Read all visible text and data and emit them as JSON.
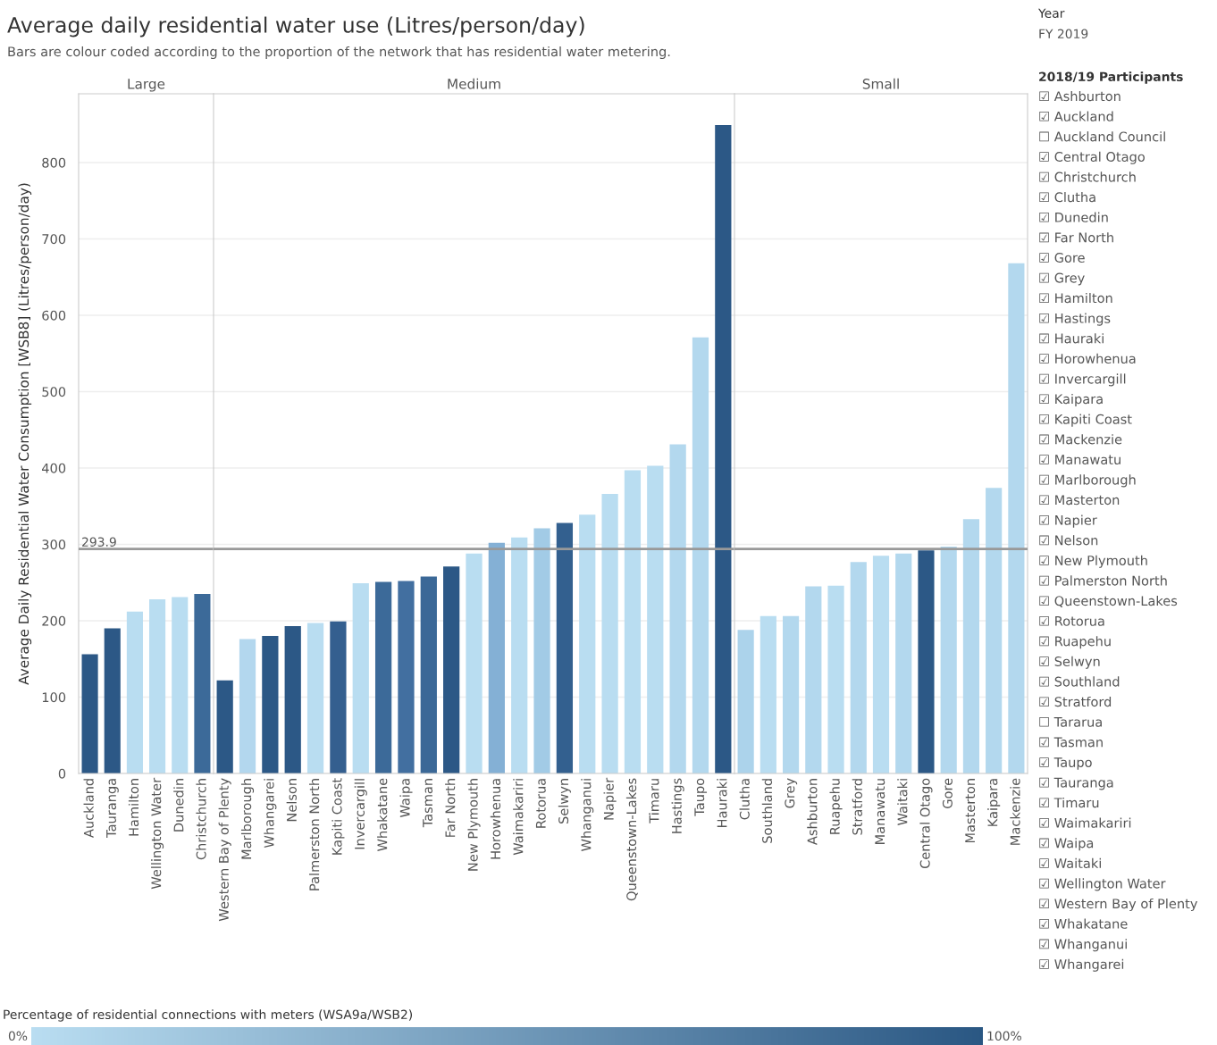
{
  "chart_data": [
    {
      "type": "other",
      "title": "Average daily residential water use (Litres/person/day)",
      "subtitle": "Bars are colour coded according to the proportion of the network that has residential water metering.",
      "annotations": [
        "Year",
        "FY 2019",
        "2018/19 Participants",
        "☑ Ashburton",
        "☑ Auckland",
        "☐ Auckland Council",
        "☑ Central Otago",
        "☑ Christchurch",
        "☑ Clutha",
        "☑ Dunedin",
        "☑ Far North",
        "☑ Gore",
        "☑ Grey",
        "☑ Hamilton",
        "☑ Hastings",
        "☑ Hauraki",
        "☑ Horowhenua",
        "☑ Invercargill",
        "☑ Kaipara",
        "☑ Kapiti Coast",
        "☑ Mackenzie",
        "☑ Manawatu",
        "☑ Marlborough",
        "☑ Masterton",
        "☑ Napier",
        "☑ Nelson",
        "☑ New Plymouth",
        "☑ Palmerston North",
        "☑ Queenstown-Lakes",
        "☑ Rotorua",
        "☑ Ruapehu",
        "☑ Selwyn",
        "☑ Southland",
        "☑ Stratford",
        "☐ Tararua",
        "☑ Tasman",
        "☑ Taupo",
        "☑ Tauranga",
        "☑ Timaru",
        "☑ Waimakariri",
        "☑ Waipa",
        "☑ Waitaki",
        "☑ Wellington Water",
        "☑ Western Bay of Plenty",
        "☑ Whakatane",
        "☑ Whanganui",
        "☑ Whangarei"
      ]
    },
    {
      "type": "bar",
      "title": "Large",
      "ylabel": "Average Daily Residential Water Consumption [WSB8] (Litres/person/day)",
      "ylim": [
        0,
        890
      ],
      "yticks": [
        0,
        100,
        200,
        300,
        400,
        500,
        600,
        700,
        800
      ],
      "grid": "y",
      "categories": [
        "Auckland",
        "Tauranga",
        "Hamilton",
        "Wellington Water",
        "Dunedin",
        "Christchurch"
      ],
      "values": [
        156,
        190,
        212,
        228,
        231,
        235
      ],
      "colors": [
        "#2c5886",
        "#2c5886",
        "#b9ddf1",
        "#b9ddf1",
        "#b9ddf1",
        "#3c6a99"
      ],
      "ref_lines": [
        {
          "axis": "y",
          "value": 293.9,
          "label": "293.9",
          "color": "#999999"
        }
      ],
      "clabel": "Percentage of residential connections with meters (WSA9a/WSB2)",
      "clim": [
        0,
        100
      ],
      "cticks": [
        {
          "value": 0,
          "label": "0%"
        },
        {
          "value": 100,
          "label": "100%"
        }
      ]
    },
    {
      "type": "bar",
      "title": "Medium",
      "ylim": [
        0,
        890
      ],
      "yticks": [
        0,
        100,
        200,
        300,
        400,
        500,
        600,
        700,
        800
      ],
      "grid": "y",
      "tick_labels": "x",
      "categories": [
        "Western Bay of Plenty",
        "Marlborough",
        "Whangarei",
        "Nelson",
        "Palmerston North",
        "Kapiti Coast",
        "Invercargill",
        "Whakatane",
        "Waipa",
        "Tasman",
        "Far North",
        "New Plymouth",
        "Horowhenua",
        "Waimakariri",
        "Rotorua",
        "Selwyn",
        "Whanganui",
        "Napier",
        "Queenstown-Lakes",
        "Timaru",
        "Hastings",
        "Taupo",
        "Hauraki"
      ],
      "values": [
        122,
        176,
        180,
        193,
        197,
        199,
        249,
        251,
        252,
        258,
        271,
        288,
        302,
        309,
        321,
        328,
        339,
        366,
        397,
        403,
        431,
        571,
        849
      ],
      "colors": [
        "#2c5886",
        "#b3d7ee",
        "#2c5886",
        "#2c5886",
        "#b9ddf1",
        "#345f8f",
        "#b9ddf1",
        "#3c6a99",
        "#426fa0",
        "#3b6897",
        "#2c5886",
        "#b9ddf1",
        "#84b0d5",
        "#b9ddf1",
        "#a2cbe6",
        "#33608f",
        "#b9ddf1",
        "#b9ddf1",
        "#b9ddf1",
        "#b9ddf1",
        "#b3d8ee",
        "#b3d8ee",
        "#2c5886"
      ],
      "ref_lines": [
        {
          "axis": "y",
          "value": 293.9,
          "color": "#999999"
        }
      ]
    },
    {
      "type": "bar",
      "title": "Small",
      "ylim": [
        0,
        890
      ],
      "yticks": [
        0,
        100,
        200,
        300,
        400,
        500,
        600,
        700,
        800
      ],
      "grid": "y",
      "tick_labels": "x",
      "categories": [
        "Clutha",
        "Southland",
        "Grey",
        "Ashburton",
        "Ruapehu",
        "Stratford",
        "Manawatu",
        "Waitaki",
        "Central Otago",
        "Gore",
        "Masterton",
        "Kaipara",
        "Mackenzie"
      ],
      "values": [
        188,
        206,
        206,
        245,
        246,
        277,
        285,
        288,
        292,
        297,
        333,
        374,
        668
      ],
      "colors": [
        "#acd3eb",
        "#b9ddf1",
        "#b3d8ee",
        "#b3d8ee",
        "#b9ddf1",
        "#b3d8ee",
        "#b9ddf1",
        "#b3d8ee",
        "#2c5886",
        "#b3d8ee",
        "#b3d8ee",
        "#b3d8ee",
        "#b3d8ee"
      ],
      "ref_lines": [
        {
          "axis": "y",
          "value": 293.9,
          "color": "#999999"
        }
      ]
    }
  ]
}
